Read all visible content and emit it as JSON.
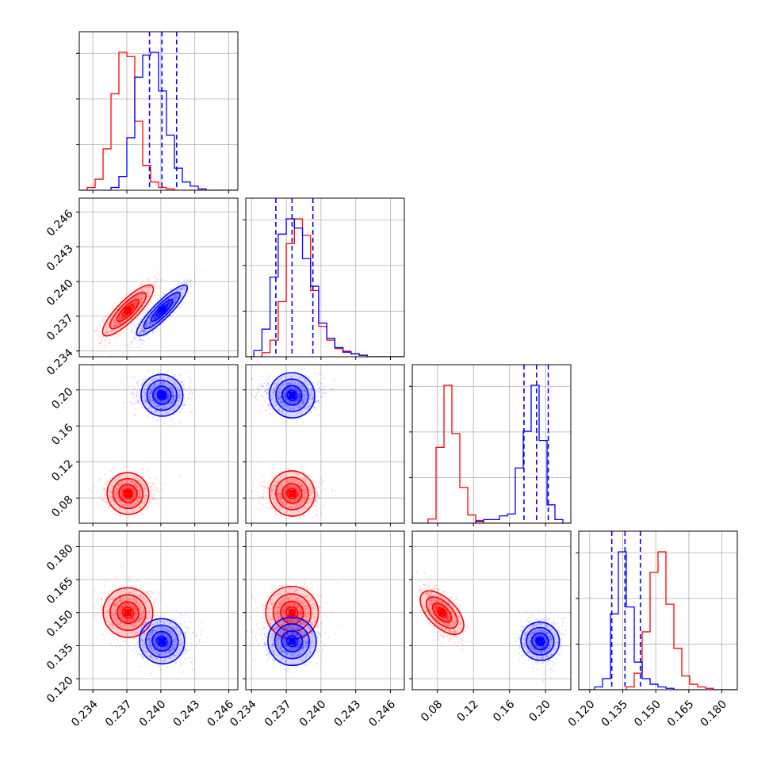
{
  "chart_data": {
    "type": "corner",
    "description_free": true,
    "parameters": [
      {
        "range": [
          0.2328,
          0.2468
        ],
        "ticks": [
          0.234,
          0.237,
          0.24,
          0.243,
          0.246
        ],
        "tick_labels": [
          "0.234",
          "0.237",
          "0.240",
          "0.243",
          "0.246"
        ]
      },
      {
        "range": [
          0.2335,
          0.2472
        ],
        "ticks": [
          0.234,
          0.237,
          0.24,
          0.243,
          0.246
        ],
        "tick_labels": [
          "0.234",
          "0.237",
          "0.240",
          "0.243",
          "0.246"
        ]
      },
      {
        "range": [
          0.052,
          0.228
        ],
        "ticks": [
          0.08,
          0.12,
          0.16,
          0.2
        ],
        "tick_labels": [
          "0.08",
          "0.12",
          "0.16",
          "0.20"
        ]
      },
      {
        "range": [
          0.115,
          0.187
        ],
        "ticks": [
          0.12,
          0.135,
          0.15,
          0.165,
          0.18
        ],
        "tick_labels": [
          "0.120",
          "0.135",
          "0.150",
          "0.165",
          "0.180"
        ]
      }
    ],
    "series": [
      {
        "color": "#ff0000",
        "means": [
          0.2371,
          0.2375,
          0.085,
          0.15
        ],
        "stds": [
          0.001,
          0.0011,
          0.009,
          0.0055
        ],
        "correlations": {
          "0-1": 0.85,
          "0-2": 0.0,
          "0-3": 0.0,
          "1-2": 0.0,
          "1-3": 0.0,
          "2-3": -0.6
        },
        "histograms": [
          {
            "edges_start": 0.2328,
            "bin_width": 0.0007,
            "counts": [
              0,
              2,
              8,
              30,
              70,
              100,
              97,
              50,
              18,
              6,
              2,
              1,
              0,
              0,
              0,
              0,
              0,
              0,
              0,
              0
            ]
          },
          {
            "edges_start": 0.2335,
            "bin_width": 0.0007,
            "counts": [
              0,
              0,
              3,
              12,
              40,
              82,
              100,
              88,
              48,
              22,
              12,
              6,
              4,
              2,
              1,
              0,
              0,
              0,
              0,
              0
            ]
          },
          {
            "edges_start": 0.052,
            "bin_width": 0.0088,
            "counts": [
              0,
              0,
              3,
              55,
              100,
              65,
              26,
              6,
              2,
              0,
              0,
              0,
              0,
              0,
              0,
              0,
              0,
              0,
              0,
              0
            ]
          },
          {
            "edges_start": 0.115,
            "bin_width": 0.0036,
            "counts": [
              0,
              0,
              0,
              0,
              0,
              0,
              2,
              12,
              42,
              85,
              100,
              62,
              30,
              10,
              4,
              2,
              1,
              0,
              0,
              0
            ]
          }
        ]
      },
      {
        "color": "#0000ff",
        "means": [
          0.2401,
          0.2375,
          0.194,
          0.137
        ],
        "stds": [
          0.001,
          0.0011,
          0.009,
          0.0045
        ],
        "correlations": {
          "0-1": 0.9,
          "0-2": 0.0,
          "0-3": 0.0,
          "1-2": 0.0,
          "1-3": 0.0,
          "2-3": 0.0
        },
        "histograms": [
          {
            "edges_start": 0.2328,
            "bin_width": 0.0007,
            "counts": [
              0,
              0,
              0,
              0,
              2,
              10,
              38,
              82,
              98,
              100,
              72,
              40,
              16,
              6,
              3,
              1,
              0,
              0,
              0,
              0
            ]
          },
          {
            "edges_start": 0.2335,
            "bin_width": 0.0007,
            "counts": [
              0,
              4,
              18,
              52,
              80,
              90,
              84,
              64,
              46,
              22,
              12,
              6,
              3,
              2,
              1,
              0,
              0,
              0,
              0,
              0
            ]
          },
          {
            "edges_start": 0.052,
            "bin_width": 0.0088,
            "counts": [
              0,
              0,
              0,
              0,
              0,
              0,
              0,
              0,
              1,
              2,
              2,
              4,
              5,
              30,
              50,
              75,
              45,
              10,
              2,
              0
            ]
          },
          {
            "edges_start": 0.115,
            "bin_width": 0.0036,
            "counts": [
              0,
              0,
              2,
              8,
              55,
              100,
              60,
              20,
              8,
              4,
              2,
              1,
              0,
              0,
              0,
              0,
              0,
              0,
              0,
              0
            ]
          }
        ],
        "quantile_lines": [
          [
            0.239,
            0.2401,
            0.2414
          ],
          [
            0.2361,
            0.2375,
            0.2393
          ],
          [
            0.176,
            0.19,
            0.203
          ],
          [
            0.13,
            0.136,
            0.143
          ]
        ]
      }
    ],
    "grid": true,
    "legend": "none"
  }
}
